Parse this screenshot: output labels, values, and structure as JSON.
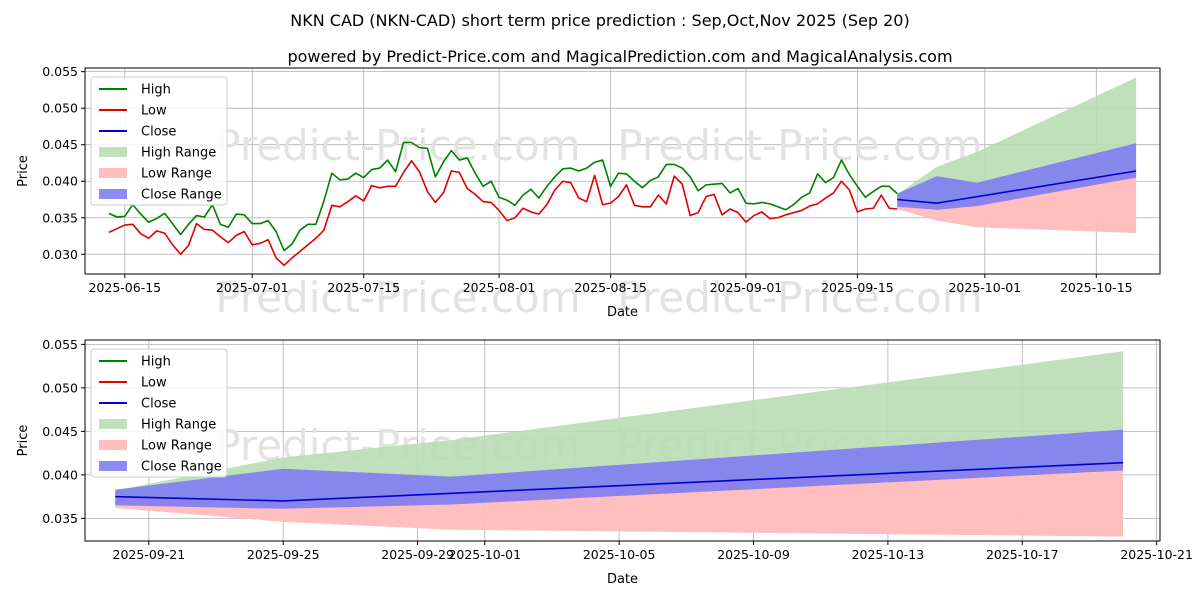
{
  "title": "NKN CAD (NKN-CAD) short term price prediction : Sep,Oct,Nov 2025 (Sep 20)",
  "subtitle": "powered by Predict-Price.com and MagicalPrediction.com and MagicalAnalysis.com",
  "watermark": "Predict-Price.com",
  "colors": {
    "high": "#008000",
    "low": "#e00000",
    "close": "#0000cc",
    "high_range": "#b9ddb5",
    "low_range": "#ffbcbc",
    "close_range": "#7b7bf2",
    "grid": "#b0b0b0"
  },
  "chart_data": [
    {
      "type": "line",
      "name": "history-and-forecast",
      "xlabel": "Date",
      "ylabel": "Price",
      "xlim": [
        "2025-06-10",
        "2025-10-23"
      ],
      "ylim": [
        0.0273,
        0.0555
      ],
      "x_ticks": [
        "2025-06-15",
        "2025-07-01",
        "2025-07-15",
        "2025-08-01",
        "2025-08-15",
        "2025-09-01",
        "2025-09-15",
        "2025-10-01",
        "2025-10-15"
      ],
      "y_ticks": [
        "0.030",
        "0.035",
        "0.040",
        "0.045",
        "0.050",
        "0.055"
      ],
      "grid": true,
      "legend": "top-left",
      "legend_entries": [
        "High",
        "Low",
        "Close",
        "High Range",
        "Low Range",
        "Close Range"
      ],
      "history_start": "2025-06-13",
      "series": [
        {
          "name": "High",
          "values": [
            0.0356,
            0.0351,
            0.0352,
            0.0368,
            0.0355,
            0.0344,
            0.0349,
            0.0356,
            0.0342,
            0.0327,
            0.0341,
            0.0353,
            0.0351,
            0.0368,
            0.0341,
            0.0337,
            0.0355,
            0.0354,
            0.0342,
            0.0342,
            0.0346,
            0.0331,
            0.0305,
            0.0314,
            0.0333,
            0.0341,
            0.0341,
            0.0373,
            0.0411,
            0.0402,
            0.0403,
            0.0411,
            0.0405,
            0.0416,
            0.0418,
            0.0429,
            0.0413,
            0.0453,
            0.0453,
            0.0446,
            0.0445,
            0.0406,
            0.0426,
            0.0442,
            0.0429,
            0.0432,
            0.0411,
            0.0393,
            0.04,
            0.0378,
            0.0374,
            0.0367,
            0.0381,
            0.0389,
            0.0377,
            0.0393,
            0.0406,
            0.0417,
            0.0418,
            0.0414,
            0.0418,
            0.0426,
            0.0429,
            0.0393,
            0.0411,
            0.041,
            0.04,
            0.0391,
            0.0401,
            0.0406,
            0.0423,
            0.0423,
            0.0418,
            0.0406,
            0.0387,
            0.0395,
            0.0396,
            0.0397,
            0.0384,
            0.039,
            0.037,
            0.0369,
            0.0371,
            0.0369,
            0.0365,
            0.0361,
            0.0368,
            0.0378,
            0.0384,
            0.041,
            0.0398,
            0.0405,
            0.0429,
            0.0409,
            0.0393,
            0.0378,
            0.0386,
            0.0393,
            0.0393,
            0.0383
          ]
        },
        {
          "name": "Low",
          "values": [
            0.033,
            0.0335,
            0.034,
            0.0341,
            0.0328,
            0.0322,
            0.0332,
            0.0329,
            0.0313,
            0.03,
            0.0312,
            0.0342,
            0.0334,
            0.0333,
            0.0324,
            0.0316,
            0.0326,
            0.0331,
            0.0313,
            0.0315,
            0.032,
            0.0295,
            0.0285,
            0.0295,
            0.0304,
            0.0313,
            0.0322,
            0.0333,
            0.0367,
            0.0365,
            0.0372,
            0.038,
            0.0373,
            0.0394,
            0.0391,
            0.0393,
            0.0393,
            0.0412,
            0.0428,
            0.0413,
            0.0386,
            0.0371,
            0.0384,
            0.0414,
            0.0412,
            0.039,
            0.0382,
            0.0372,
            0.0371,
            0.036,
            0.0346,
            0.035,
            0.0363,
            0.0358,
            0.0355,
            0.0368,
            0.0388,
            0.04,
            0.0398,
            0.0377,
            0.0372,
            0.0408,
            0.0368,
            0.037,
            0.0379,
            0.0395,
            0.0367,
            0.0365,
            0.0365,
            0.0381,
            0.0369,
            0.0407,
            0.0396,
            0.0353,
            0.0357,
            0.0379,
            0.0382,
            0.0354,
            0.0362,
            0.0357,
            0.0344,
            0.0353,
            0.0358,
            0.0349,
            0.035,
            0.0354,
            0.0357,
            0.036,
            0.0366,
            0.0369,
            0.0377,
            0.0384,
            0.04,
            0.0388,
            0.0358,
            0.0362,
            0.0363,
            0.0381,
            0.0363,
            0.0362
          ]
        },
        {
          "name": "Close",
          "x": [
            "2025-09-20",
            "2025-09-25",
            "2025-10-20"
          ],
          "values": [
            0.0375,
            0.037,
            0.0414
          ]
        }
      ],
      "ranges": [
        {
          "name": "High Range",
          "x": [
            "2025-09-20",
            "2025-09-25",
            "2025-09-30",
            "2025-10-20"
          ],
          "lower": [
            0.0375,
            0.037,
            0.038,
            0.0414
          ],
          "upper": [
            0.0382,
            0.042,
            0.044,
            0.0542
          ]
        },
        {
          "name": "Low Range",
          "x": [
            "2025-09-20",
            "2025-09-25",
            "2025-09-30",
            "2025-10-20"
          ],
          "lower": [
            0.0362,
            0.0346,
            0.0337,
            0.0329
          ],
          "upper": [
            0.0375,
            0.037,
            0.038,
            0.0414
          ]
        },
        {
          "name": "Close Range",
          "x": [
            "2025-09-20",
            "2025-09-25",
            "2025-09-30",
            "2025-10-20"
          ],
          "lower": [
            0.0365,
            0.0361,
            0.0366,
            0.0405
          ],
          "upper": [
            0.0383,
            0.0407,
            0.0398,
            0.0452
          ]
        }
      ]
    },
    {
      "type": "line",
      "name": "forecast-zoom",
      "xlabel": "Date",
      "ylabel": "Price",
      "xlim": [
        "2025-09-19.1",
        "2025-10-21.1"
      ],
      "ylim": [
        0.0324,
        0.0555
      ],
      "x_ticks": [
        "2025-09-21",
        "2025-09-25",
        "2025-09-29",
        "2025-10-01",
        "2025-10-05",
        "2025-10-09",
        "2025-10-13",
        "2025-10-17",
        "2025-10-21"
      ],
      "y_ticks": [
        "0.035",
        "0.040",
        "0.045",
        "0.050",
        "0.055"
      ],
      "grid": true,
      "legend": "top-left",
      "legend_entries": [
        "High",
        "Low",
        "Close",
        "High Range",
        "Low Range",
        "Close Range"
      ],
      "series": [
        {
          "name": "Close",
          "x": [
            "2025-09-20",
            "2025-09-25",
            "2025-10-20"
          ],
          "values": [
            0.0375,
            0.037,
            0.0414
          ]
        }
      ],
      "ranges": [
        {
          "name": "High Range",
          "x": [
            "2025-09-20",
            "2025-09-25",
            "2025-09-30",
            "2025-10-20"
          ],
          "lower": [
            0.0375,
            0.037,
            0.038,
            0.0414
          ],
          "upper": [
            0.0382,
            0.042,
            0.044,
            0.0542
          ]
        },
        {
          "name": "Low Range",
          "x": [
            "2025-09-20",
            "2025-09-25",
            "2025-09-30",
            "2025-10-20"
          ],
          "lower": [
            0.0362,
            0.0346,
            0.0337,
            0.0329
          ],
          "upper": [
            0.0375,
            0.037,
            0.038,
            0.0414
          ]
        },
        {
          "name": "Close Range",
          "x": [
            "2025-09-20",
            "2025-09-25",
            "2025-09-30",
            "2025-10-20"
          ],
          "lower": [
            0.0365,
            0.0361,
            0.0366,
            0.0405
          ],
          "upper": [
            0.0383,
            0.0407,
            0.0398,
            0.0452
          ]
        }
      ]
    }
  ]
}
